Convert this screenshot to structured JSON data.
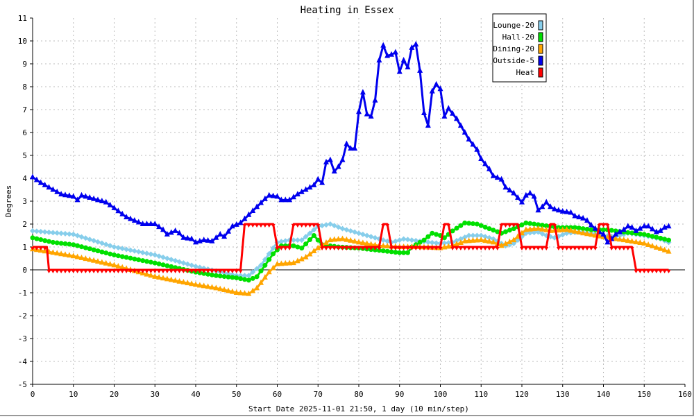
{
  "chart_data": {
    "type": "line",
    "title": "Heating in Essex",
    "xlabel": "Start Date 2025-11-01 21:50, 1 day (10 min/step)",
    "ylabel": "Degrees",
    "xlim": [
      0,
      160
    ],
    "ylim": [
      -5,
      11
    ],
    "xticks": [
      0,
      10,
      20,
      30,
      40,
      50,
      60,
      70,
      80,
      90,
      100,
      110,
      120,
      130,
      140,
      150,
      160
    ],
    "yticks": [
      -5,
      -4,
      -3,
      -2,
      -1,
      0,
      1,
      2,
      3,
      4,
      5,
      6,
      7,
      8,
      9,
      10,
      11
    ],
    "grid": true,
    "legend_position": "top-right",
    "series": [
      {
        "name": "Lounge-20",
        "color": "#87ceeb",
        "marker": "diamond",
        "points": [
          [
            0,
            1.7
          ],
          [
            10,
            1.55
          ],
          [
            20,
            1.0
          ],
          [
            30,
            0.65
          ],
          [
            40,
            0.15
          ],
          [
            45,
            -0.05
          ],
          [
            50,
            -0.25
          ],
          [
            53,
            -0.25
          ],
          [
            56,
            0.2
          ],
          [
            60,
            1.2
          ],
          [
            63,
            1.3
          ],
          [
            66,
            1.3
          ],
          [
            70,
            1.9
          ],
          [
            73,
            2.0
          ],
          [
            76,
            1.8
          ],
          [
            80,
            1.6
          ],
          [
            85,
            1.35
          ],
          [
            88,
            1.2
          ],
          [
            91,
            1.35
          ],
          [
            95,
            1.25
          ],
          [
            100,
            1.15
          ],
          [
            103,
            1.2
          ],
          [
            107,
            1.5
          ],
          [
            110,
            1.5
          ],
          [
            113,
            1.35
          ],
          [
            116,
            1.05
          ],
          [
            118,
            1.15
          ],
          [
            121,
            1.6
          ],
          [
            124,
            1.65
          ],
          [
            126,
            1.5
          ],
          [
            128,
            1.4
          ],
          [
            131,
            1.6
          ],
          [
            134,
            1.65
          ],
          [
            137,
            1.6
          ],
          [
            140,
            1.5
          ],
          [
            143,
            1.45
          ],
          [
            146,
            1.6
          ],
          [
            150,
            1.5
          ],
          [
            154,
            1.35
          ],
          [
            156,
            1.2
          ]
        ]
      },
      {
        "name": "Hall-20",
        "color": "#00e000",
        "marker": "circle",
        "points": [
          [
            0,
            1.4
          ],
          [
            5,
            1.2
          ],
          [
            10,
            1.1
          ],
          [
            20,
            0.65
          ],
          [
            30,
            0.3
          ],
          [
            40,
            -0.1
          ],
          [
            45,
            -0.25
          ],
          [
            50,
            -0.35
          ],
          [
            53,
            -0.45
          ],
          [
            55,
            -0.3
          ],
          [
            57,
            0.2
          ],
          [
            59,
            0.7
          ],
          [
            61,
            1.05
          ],
          [
            64,
            1.05
          ],
          [
            66,
            0.95
          ],
          [
            69,
            1.5
          ],
          [
            71,
            1.1
          ],
          [
            75,
            1.0
          ],
          [
            80,
            0.95
          ],
          [
            85,
            0.85
          ],
          [
            90,
            0.75
          ],
          [
            92,
            0.75
          ],
          [
            93,
            1.0
          ],
          [
            96,
            1.3
          ],
          [
            98,
            1.6
          ],
          [
            100,
            1.5
          ],
          [
            101,
            1.4
          ],
          [
            103,
            1.7
          ],
          [
            106,
            2.05
          ],
          [
            109,
            2.0
          ],
          [
            112,
            1.8
          ],
          [
            115,
            1.6
          ],
          [
            118,
            1.8
          ],
          [
            121,
            2.05
          ],
          [
            125,
            1.95
          ],
          [
            129,
            1.85
          ],
          [
            133,
            1.85
          ],
          [
            137,
            1.75
          ],
          [
            141,
            1.75
          ],
          [
            145,
            1.65
          ],
          [
            150,
            1.55
          ],
          [
            156,
            1.3
          ]
        ]
      },
      {
        "name": "Dining-20",
        "color": "#ffa500",
        "marker": "triangle",
        "points": [
          [
            0,
            0.9
          ],
          [
            5,
            0.75
          ],
          [
            10,
            0.6
          ],
          [
            20,
            0.2
          ],
          [
            30,
            -0.3
          ],
          [
            40,
            -0.65
          ],
          [
            45,
            -0.8
          ],
          [
            50,
            -1.0
          ],
          [
            53,
            -1.05
          ],
          [
            55,
            -0.8
          ],
          [
            58,
            -0.1
          ],
          [
            60,
            0.25
          ],
          [
            64,
            0.3
          ],
          [
            67,
            0.55
          ],
          [
            70,
            0.95
          ],
          [
            73,
            1.3
          ],
          [
            76,
            1.35
          ],
          [
            80,
            1.2
          ],
          [
            85,
            1.05
          ],
          [
            90,
            1.0
          ],
          [
            95,
            1.0
          ],
          [
            100,
            0.95
          ],
          [
            103,
            1.05
          ],
          [
            106,
            1.25
          ],
          [
            110,
            1.3
          ],
          [
            113,
            1.2
          ],
          [
            115,
            1.05
          ],
          [
            118,
            1.3
          ],
          [
            121,
            1.75
          ],
          [
            124,
            1.8
          ],
          [
            127,
            1.7
          ],
          [
            131,
            1.75
          ],
          [
            135,
            1.6
          ],
          [
            138,
            1.5
          ],
          [
            141,
            1.4
          ],
          [
            145,
            1.3
          ],
          [
            150,
            1.15
          ],
          [
            156,
            0.8
          ]
        ]
      },
      {
        "name": "Outside-5",
        "color": "#0000ee",
        "marker": "triangle",
        "points": [
          [
            0,
            4.05
          ],
          [
            2,
            3.8
          ],
          [
            5,
            3.5
          ],
          [
            7,
            3.3
          ],
          [
            10,
            3.2
          ],
          [
            11,
            3.05
          ],
          [
            12,
            3.25
          ],
          [
            15,
            3.1
          ],
          [
            18,
            2.95
          ],
          [
            20,
            2.7
          ],
          [
            23,
            2.3
          ],
          [
            25,
            2.15
          ],
          [
            27,
            2.0
          ],
          [
            30,
            2.0
          ],
          [
            32,
            1.75
          ],
          [
            33,
            1.55
          ],
          [
            35,
            1.7
          ],
          [
            36,
            1.6
          ],
          [
            37,
            1.4
          ],
          [
            39,
            1.35
          ],
          [
            40,
            1.2
          ],
          [
            42,
            1.3
          ],
          [
            44,
            1.25
          ],
          [
            46,
            1.55
          ],
          [
            47,
            1.45
          ],
          [
            49,
            1.9
          ],
          [
            51,
            2.05
          ],
          [
            53,
            2.4
          ],
          [
            55,
            2.75
          ],
          [
            57,
            3.1
          ],
          [
            58,
            3.25
          ],
          [
            60,
            3.2
          ],
          [
            61,
            3.05
          ],
          [
            63,
            3.05
          ],
          [
            65,
            3.3
          ],
          [
            67,
            3.5
          ],
          [
            69,
            3.7
          ],
          [
            70,
            3.95
          ],
          [
            71,
            3.8
          ],
          [
            72,
            4.7
          ],
          [
            73,
            4.8
          ],
          [
            74,
            4.3
          ],
          [
            75,
            4.5
          ],
          [
            76,
            4.8
          ],
          [
            77,
            5.5
          ],
          [
            78,
            5.3
          ],
          [
            79,
            5.3
          ],
          [
            80,
            6.9
          ],
          [
            81,
            7.75
          ],
          [
            82,
            6.8
          ],
          [
            83,
            6.7
          ],
          [
            84,
            7.4
          ],
          [
            85,
            9.15
          ],
          [
            86,
            9.8
          ],
          [
            87,
            9.35
          ],
          [
            88,
            9.4
          ],
          [
            89,
            9.5
          ],
          [
            90,
            8.65
          ],
          [
            91,
            9.15
          ],
          [
            92,
            8.85
          ],
          [
            93,
            9.7
          ],
          [
            94,
            9.85
          ],
          [
            95,
            8.7
          ],
          [
            96,
            6.85
          ],
          [
            97,
            6.3
          ],
          [
            98,
            7.8
          ],
          [
            99,
            8.1
          ],
          [
            100,
            7.9
          ],
          [
            101,
            6.7
          ],
          [
            102,
            7.05
          ],
          [
            104,
            6.6
          ],
          [
            106,
            6.0
          ],
          [
            107,
            5.7
          ],
          [
            109,
            5.25
          ],
          [
            110,
            4.85
          ],
          [
            112,
            4.4
          ],
          [
            113,
            4.1
          ],
          [
            115,
            3.95
          ],
          [
            116,
            3.6
          ],
          [
            118,
            3.35
          ],
          [
            119,
            3.15
          ],
          [
            120,
            2.95
          ],
          [
            121,
            3.25
          ],
          [
            122,
            3.35
          ],
          [
            123,
            3.2
          ],
          [
            124,
            2.6
          ],
          [
            125,
            2.75
          ],
          [
            126,
            2.95
          ],
          [
            127,
            2.75
          ],
          [
            128,
            2.65
          ],
          [
            130,
            2.55
          ],
          [
            132,
            2.5
          ],
          [
            133,
            2.35
          ],
          [
            135,
            2.25
          ],
          [
            136,
            2.15
          ],
          [
            137,
            1.95
          ],
          [
            139,
            1.65
          ],
          [
            140,
            1.55
          ],
          [
            141,
            1.2
          ],
          [
            142,
            1.35
          ],
          [
            143,
            1.55
          ],
          [
            145,
            1.75
          ],
          [
            146,
            1.9
          ],
          [
            147,
            1.85
          ],
          [
            148,
            1.7
          ],
          [
            149,
            1.8
          ],
          [
            150,
            1.9
          ],
          [
            151,
            1.9
          ],
          [
            153,
            1.65
          ],
          [
            154,
            1.7
          ],
          [
            155,
            1.85
          ],
          [
            156,
            1.9
          ]
        ]
      },
      {
        "name": "Heat",
        "color": "#ff0000",
        "marker": "downtriangle",
        "points": [
          [
            0,
            1
          ],
          [
            3.5,
            1
          ],
          [
            4,
            0
          ],
          [
            51,
            0
          ],
          [
            52,
            2
          ],
          [
            59,
            2
          ],
          [
            60,
            1
          ],
          [
            63,
            1
          ],
          [
            64,
            2
          ],
          [
            70,
            2
          ],
          [
            71,
            1
          ],
          [
            85,
            1
          ],
          [
            86,
            2
          ],
          [
            87,
            2
          ],
          [
            88,
            1
          ],
          [
            100,
            1
          ],
          [
            101,
            2
          ],
          [
            102,
            2
          ],
          [
            103,
            1
          ],
          [
            114,
            1
          ],
          [
            115,
            2
          ],
          [
            119,
            2
          ],
          [
            120,
            1
          ],
          [
            126,
            1
          ],
          [
            127,
            2
          ],
          [
            128,
            2
          ],
          [
            129,
            1
          ],
          [
            138,
            1
          ],
          [
            139,
            2
          ],
          [
            141,
            2
          ],
          [
            142,
            1
          ],
          [
            147,
            1
          ],
          [
            148,
            0
          ],
          [
            156,
            0
          ]
        ]
      }
    ]
  }
}
